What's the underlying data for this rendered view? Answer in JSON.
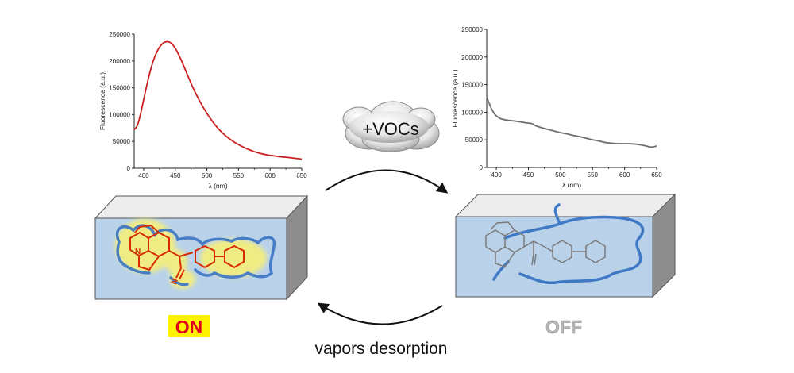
{
  "colors": {
    "on_curve": "#cc1f1f",
    "off_curve": "#6e6e6e",
    "box_face": "#b9d2ea",
    "polymer": "#3f78c4",
    "on_glow": "#f6ef7a",
    "on_label_bg": "#fff200",
    "on_label_text": "#e0001b",
    "off_label": "#b6b6b6",
    "molecule_on": "#d72a00",
    "molecule_off": "#7a7a7a"
  },
  "chart_data": [
    {
      "type": "line",
      "state": "ON",
      "xlabel": "λ (nm)",
      "ylabel": "Fluorescence (a.u.)",
      "xlim": [
        385,
        650
      ],
      "ylim": [
        0,
        250000
      ],
      "xticks": [
        400,
        450,
        500,
        550,
        600,
        650
      ],
      "yticks": [
        0,
        50000,
        100000,
        150000,
        200000,
        250000
      ],
      "grid": false,
      "series": [
        {
          "x": [
            385,
            390,
            395,
            400,
            405,
            410,
            415,
            420,
            425,
            430,
            435,
            440,
            445,
            450,
            455,
            460,
            465,
            470,
            475,
            480,
            490,
            500,
            510,
            520,
            530,
            540,
            550,
            560,
            570,
            580,
            590,
            600,
            610,
            620,
            630,
            640,
            650
          ],
          "y": [
            72000,
            78000,
            100000,
            128000,
            155000,
            180000,
            200000,
            215000,
            226000,
            233000,
            236000,
            236000,
            232000,
            224000,
            213000,
            200000,
            186000,
            172000,
            158000,
            145000,
            122000,
            102000,
            85000,
            71000,
            60000,
            51000,
            44000,
            38000,
            33000,
            29000,
            26000,
            24000,
            22500,
            21000,
            20000,
            18500,
            17000
          ]
        }
      ]
    },
    {
      "type": "line",
      "state": "OFF",
      "xlabel": "λ (nm)",
      "ylabel": "Fluorescence (a.u.)",
      "xlim": [
        385,
        650
      ],
      "ylim": [
        0,
        250000
      ],
      "xticks": [
        400,
        450,
        500,
        550,
        600,
        650
      ],
      "yticks": [
        0,
        50000,
        100000,
        150000,
        200000,
        250000
      ],
      "grid": false,
      "series": [
        {
          "x": [
            385,
            390,
            395,
            400,
            405,
            410,
            420,
            430,
            440,
            450,
            455,
            460,
            470,
            480,
            490,
            500,
            510,
            520,
            530,
            540,
            550,
            560,
            570,
            580,
            590,
            600,
            610,
            620,
            630,
            640,
            645,
            650
          ],
          "y": [
            128000,
            112000,
            100000,
            93000,
            89000,
            87000,
            85000,
            84000,
            82000,
            80000,
            80000,
            76000,
            72000,
            69000,
            66000,
            63000,
            61000,
            58000,
            56000,
            53000,
            50000,
            48000,
            45000,
            44000,
            43000,
            43000,
            43000,
            42000,
            40000,
            37000,
            37000,
            39000
          ]
        }
      ]
    }
  ],
  "labels": {
    "forward": "+VOCs",
    "reverse": "vapors desorption",
    "on_state": "ON",
    "off_state": "OFF",
    "n_atom": "N",
    "cn_group": "N"
  }
}
